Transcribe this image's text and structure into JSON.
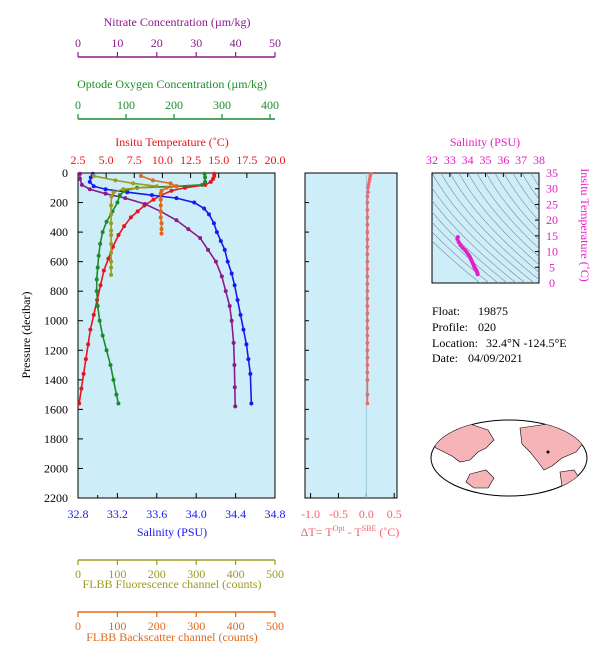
{
  "colors": {
    "nitrate": "#8b1a8b",
    "oxygen": "#1a8c2a",
    "temperature": "#e8141c",
    "salinity": "#1a1aee",
    "fluorescence": "#9b9b22",
    "backscatter": "#e0681c",
    "deltaT": "#f0646a",
    "ts": "#e61ec8",
    "panel_bg": "#cdeef8"
  },
  "axes": {
    "nitrate": {
      "label": "Nitrate Concentration (µm/kg)",
      "ticks": [
        "0",
        "10",
        "20",
        "30",
        "40",
        "50"
      ]
    },
    "oxygen": {
      "label": "Optode Oxygen Concentration (µm/kg)",
      "ticks": [
        "0",
        "100",
        "200",
        "300",
        "400"
      ]
    },
    "temperature": {
      "label": "Insitu Temperature (˚C)",
      "ticks": [
        "2.5",
        "5.0",
        "7.5",
        "10.0",
        "12.5",
        "15.0",
        "17.5",
        "20.0"
      ]
    },
    "pressure": {
      "label": "Pressure (decibar)",
      "ticks": [
        "0",
        "200",
        "400",
        "600",
        "800",
        "1000",
        "1200",
        "1400",
        "1600",
        "1800",
        "2000",
        "2200"
      ]
    },
    "salinity": {
      "label": "Salinity (PSU)",
      "ticks": [
        "32.8",
        "33.2",
        "33.6",
        "34.0",
        "34.4",
        "34.8"
      ],
      "minor_tick": "33.0"
    },
    "deltaT": {
      "label": "ΔT= T",
      "sup1": "Opt",
      "mid": " - T",
      "sup2": "SBE",
      "unit": " (˚C)",
      "ticks": [
        "-1.0",
        "-0.5",
        "0.0",
        "0.5"
      ]
    },
    "fluorescence": {
      "label": "FLBB Fluorescence channel (counts)",
      "ticks": [
        "0",
        "100",
        "200",
        "300",
        "400",
        "500"
      ]
    },
    "backscatter": {
      "label": "FLBB Backscatter channel (counts)",
      "ticks": [
        "0",
        "100",
        "200",
        "300",
        "400",
        "500"
      ]
    },
    "ts_salinity": {
      "label": "Salinity (PSU)",
      "ticks": [
        "32",
        "33",
        "34",
        "35",
        "36",
        "37",
        "38"
      ]
    },
    "ts_temperature": {
      "label": "Insitu Temperature (˚C)",
      "ticks": [
        "0",
        "5",
        "10",
        "15",
        "20",
        "25",
        "30",
        "35"
      ]
    }
  },
  "info": {
    "float_label": "Float:",
    "float_value": "19875",
    "profile_label": "Profile:",
    "profile_value": "020",
    "location_label": "Location:",
    "location_value": "32.4°N  -124.5°E",
    "date_label": "Date:",
    "date_value": "04/09/2021"
  },
  "chart_data": [
    {
      "type": "line",
      "title": "",
      "ylabel": "Pressure (decibar)",
      "ylim": [
        2200,
        0
      ],
      "series": [
        {
          "name": "Insitu Temperature",
          "xlim": [
            2.5,
            20.0
          ],
          "x": [
            14.6,
            14.6,
            14.5,
            14.3,
            13.8,
            12.0,
            10.8,
            9.9,
            9.2,
            8.4,
            7.8,
            7.2,
            6.6,
            6.1,
            5.6,
            5.2,
            4.8,
            4.5,
            4.2,
            3.9,
            3.6,
            3.4,
            3.2,
            3.0,
            2.8,
            2.6
          ],
          "y": [
            5,
            20,
            40,
            60,
            80,
            100,
            120,
            150,
            180,
            220,
            260,
            300,
            360,
            420,
            500,
            580,
            660,
            760,
            860,
            960,
            1060,
            1160,
            1260,
            1360,
            1460,
            1560
          ]
        },
        {
          "name": "Salinity",
          "xlim": [
            32.8,
            34.8
          ],
          "x": [
            32.95,
            32.93,
            32.92,
            32.96,
            33.08,
            33.3,
            33.55,
            33.8,
            33.98,
            34.08,
            34.13,
            34.18,
            34.21,
            34.25,
            34.29,
            34.32,
            34.36,
            34.39,
            34.42,
            34.45,
            34.48,
            34.51,
            34.53,
            34.55,
            34.56
          ],
          "y": [
            5,
            30,
            60,
            90,
            110,
            130,
            150,
            170,
            200,
            240,
            280,
            340,
            400,
            460,
            520,
            600,
            680,
            760,
            860,
            960,
            1060,
            1160,
            1260,
            1360,
            1560
          ]
        },
        {
          "name": "Nitrate Concentration",
          "xlim": [
            0,
            50
          ],
          "x": [
            0.5,
            0.5,
            1.0,
            3.0,
            7.0,
            12.0,
            17.0,
            21.0,
            25.0,
            28.0,
            31.0,
            33.0,
            35.0,
            36.5,
            37.5,
            38.5,
            39.0,
            39.5,
            39.7,
            39.8,
            39.9
          ],
          "y": [
            5,
            40,
            80,
            110,
            140,
            170,
            210,
            260,
            320,
            380,
            440,
            520,
            600,
            700,
            800,
            900,
            1000,
            1150,
            1300,
            1450,
            1580
          ]
        },
        {
          "name": "Optode Oxygen Concentration",
          "xlim": [
            0,
            400
          ],
          "x": [
            257,
            258,
            258,
            252,
            200,
            120,
            95,
            85,
            80,
            70,
            58,
            50,
            45,
            42,
            40,
            38,
            38,
            40,
            44,
            50,
            58,
            66,
            72,
            78,
            82
          ],
          "y": [
            5,
            30,
            60,
            80,
            90,
            100,
            120,
            150,
            200,
            260,
            330,
            400,
            480,
            560,
            640,
            720,
            800,
            900,
            1000,
            1100,
            1200,
            1300,
            1400,
            1500,
            1560
          ]
        },
        {
          "name": "FLBB Fluorescence channel",
          "xlim": [
            0,
            500
          ],
          "x": [
            40,
            95,
            140,
            200,
            115,
            90,
            85,
            84,
            84,
            84,
            84,
            84,
            84,
            84,
            84,
            84,
            84
          ],
          "y": [
            20,
            50,
            70,
            90,
            110,
            130,
            160,
            220,
            280,
            340,
            390,
            420,
            480,
            540,
            600,
            640,
            690
          ]
        },
        {
          "name": "FLBB Backscatter channel",
          "xlim": [
            0,
            500
          ],
          "x": [
            160,
            190,
            235,
            250,
            225,
            212,
            210,
            210,
            210,
            210,
            210,
            212,
            212,
            212
          ],
          "y": [
            20,
            50,
            70,
            90,
            100,
            120,
            140,
            180,
            220,
            260,
            300,
            340,
            380,
            410
          ]
        }
      ]
    },
    {
      "type": "line",
      "xlabel": "ΔT= T^Opt - T^SBE (˚C)",
      "xlim": [
        -1.1,
        0.55
      ],
      "ylim": [
        2200,
        0
      ],
      "series": [
        {
          "name": "ΔT",
          "x": [
            0.08,
            0.07,
            0.06,
            0.05,
            0.04,
            0.03,
            0.03,
            0.02,
            0.02,
            0.02,
            0.02,
            0.02,
            0.02,
            0.02,
            0.02,
            0.02,
            0.02,
            0.02,
            0.02,
            0.02,
            0.02,
            0.02,
            0.02,
            0.02,
            0.02,
            0.02,
            0.02,
            0.02,
            0.02,
            0.02,
            0.02,
            0.02,
            0.02,
            0.02,
            0.02
          ],
          "y": [
            5,
            20,
            40,
            60,
            80,
            100,
            130,
            160,
            200,
            250,
            300,
            350,
            400,
            450,
            500,
            550,
            600,
            650,
            700,
            750,
            800,
            850,
            900,
            950,
            1000,
            1050,
            1100,
            1150,
            1200,
            1250,
            1300,
            1350,
            1400,
            1500,
            1560
          ]
        }
      ]
    },
    {
      "type": "scatter",
      "xlabel": "Salinity (PSU)",
      "ylabel": "Insitu Temperature (˚C)",
      "xlim": [
        32,
        38
      ],
      "ylim": [
        0,
        35
      ],
      "series": [
        {
          "name": "T-S",
          "x": [
            33.45,
            33.42,
            33.5,
            33.6,
            33.72,
            33.85,
            33.95,
            34.05,
            34.12,
            34.18,
            34.23,
            34.28,
            34.32,
            34.35,
            34.38,
            34.42,
            34.46,
            34.5,
            34.54,
            34.56
          ],
          "y": [
            14.6,
            14.0,
            13.0,
            12.0,
            11.2,
            10.5,
            9.8,
            9.0,
            8.3,
            7.6,
            7.0,
            6.4,
            5.9,
            5.4,
            5.0,
            4.6,
            4.2,
            3.8,
            3.3,
            2.8
          ]
        }
      ]
    }
  ]
}
